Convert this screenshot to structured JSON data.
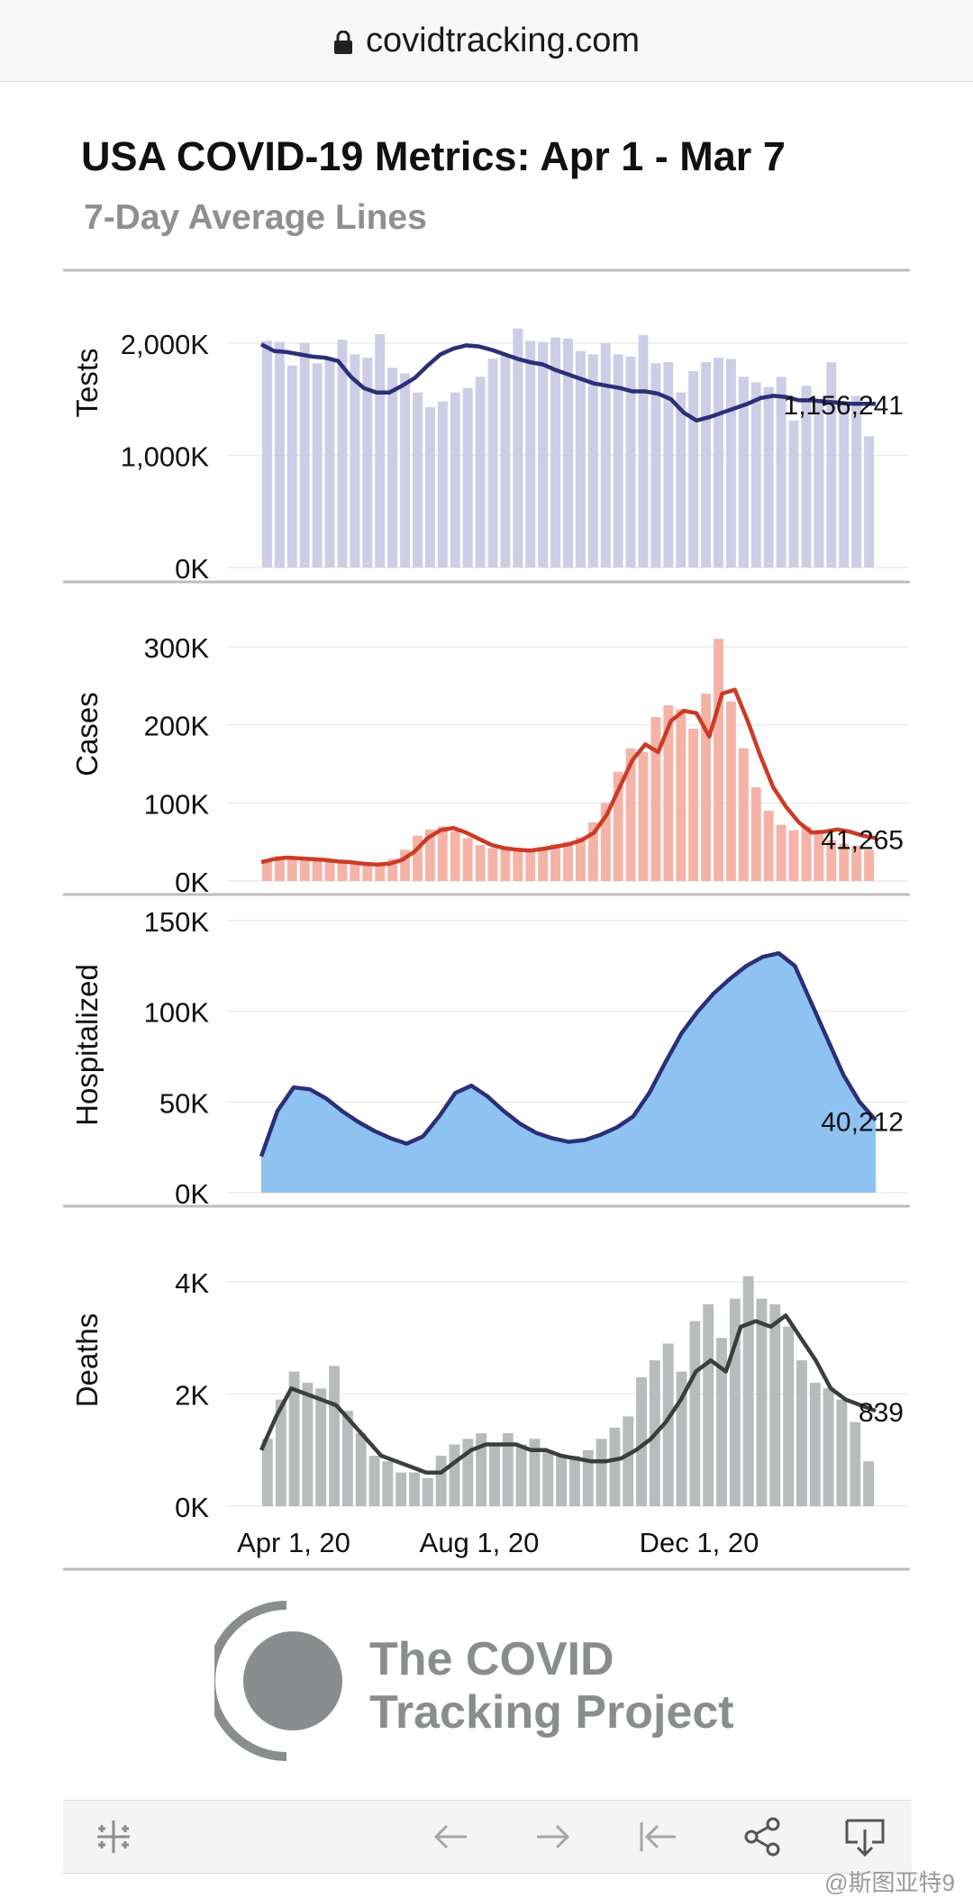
{
  "browser": {
    "url": "covidtracking.com"
  },
  "header": {
    "title": "USA COVID-19 Metrics: Apr 1 - Mar 7",
    "subtitle": "7-Day Average Lines"
  },
  "brand": {
    "line1": "The COVID",
    "line2": "Tracking Project"
  },
  "toolbar": {
    "icons": [
      "tableau-logo-icon",
      "undo-icon",
      "redo-icon",
      "revert-icon",
      "share-icon",
      "download-icon"
    ]
  },
  "watermark": "@斯图亚特9",
  "chart_data": [
    {
      "type": "bar",
      "name": "Tests",
      "ylabel": "Tests",
      "yticks": [
        0,
        1000,
        2000
      ],
      "ytick_labels": [
        "0K",
        "1,000K",
        "2,000K"
      ],
      "ylim": [
        0,
        2200
      ],
      "unit": "thousands",
      "bar_color": "#cdcde6",
      "line_color": "#2b2f78",
      "end_label": "1,156,241",
      "x_months": [
        "2020-04",
        "2020-05",
        "2020-06",
        "2020-07",
        "2020-08",
        "2020-09",
        "2020-10",
        "2020-11",
        "2020-12",
        "2021-01",
        "2021-02",
        "2021-03"
      ],
      "daily_values": [
        2020,
        2010,
        1800,
        2000,
        1820,
        1860,
        2030,
        1900,
        1870,
        2080,
        1780,
        1730,
        1560,
        1430,
        1480,
        1560,
        1600,
        1700,
        1860,
        1890,
        2130,
        2020,
        2010,
        2050,
        2040,
        1930,
        1900,
        2000,
        1900,
        1880,
        2070,
        1820,
        1830,
        1560,
        1750,
        1830,
        1870,
        1860,
        1700,
        1650,
        1610,
        1700,
        1310,
        1620,
        1500,
        1830,
        1460,
        1530,
        1170
      ],
      "avg_values": [
        1990,
        1930,
        1920,
        1900,
        1880,
        1870,
        1840,
        1700,
        1600,
        1560,
        1560,
        1620,
        1690,
        1800,
        1900,
        1950,
        1980,
        1970,
        1940,
        1900,
        1860,
        1830,
        1810,
        1760,
        1720,
        1680,
        1640,
        1620,
        1600,
        1570,
        1570,
        1550,
        1500,
        1380,
        1310,
        1340,
        1380,
        1420,
        1460,
        1510,
        1530,
        1520,
        1490,
        1490,
        1480,
        1470,
        1460,
        1460,
        1460
      ]
    },
    {
      "type": "bar",
      "name": "Cases",
      "ylabel": "Cases",
      "yticks": [
        0,
        100,
        200,
        300
      ],
      "ytick_labels": [
        "0K",
        "100K",
        "200K",
        "300K"
      ],
      "ylim": [
        0,
        300
      ],
      "unit": "thousands",
      "bar_color": "#f5b3a8",
      "line_color": "#cc3b25",
      "end_label": "41,265",
      "daily_values": [
        28,
        32,
        31,
        29,
        27,
        26,
        23,
        22,
        21,
        22,
        28,
        40,
        58,
        66,
        70,
        64,
        55,
        46,
        42,
        41,
        40,
        41,
        44,
        47,
        50,
        56,
        75,
        100,
        140,
        170,
        165,
        210,
        225,
        220,
        195,
        240,
        310,
        230,
        170,
        120,
        90,
        72,
        65,
        70,
        60,
        52,
        48,
        45,
        40
      ],
      "avg_values": [
        24,
        28,
        30,
        29,
        28,
        27,
        25,
        24,
        22,
        21,
        22,
        27,
        38,
        55,
        65,
        68,
        62,
        54,
        46,
        42,
        40,
        39,
        41,
        44,
        47,
        52,
        62,
        85,
        120,
        155,
        175,
        165,
        205,
        218,
        215,
        185,
        240,
        245,
        205,
        160,
        120,
        95,
        75,
        62,
        63,
        66,
        63,
        58,
        55
      ]
    },
    {
      "type": "area",
      "name": "Hospitalized",
      "ylabel": "Hospitalized",
      "yticks": [
        0,
        50,
        100,
        150
      ],
      "ytick_labels": [
        "0K",
        "50K",
        "100K",
        "150K"
      ],
      "ylim": [
        0,
        150
      ],
      "unit": "thousands",
      "fill_color": "#8ec2f0",
      "line_color": "#2b2f78",
      "end_label": "40,212",
      "avg_values": [
        20,
        45,
        58,
        57,
        52,
        45,
        39,
        34,
        30,
        27,
        31,
        42,
        55,
        59,
        53,
        45,
        38,
        33,
        30,
        28,
        29,
        32,
        36,
        42,
        55,
        72,
        88,
        100,
        110,
        118,
        125,
        130,
        132,
        125,
        105,
        85,
        65,
        50,
        40
      ]
    },
    {
      "type": "bar",
      "name": "Deaths",
      "ylabel": "Deaths",
      "yticks": [
        0,
        2,
        4
      ],
      "ytick_labels": [
        "0K",
        "2K",
        "4K"
      ],
      "ylim": [
        0,
        4
      ],
      "unit": "thousands",
      "bar_color": "#b7bbbb",
      "line_color": "#3c3e3e",
      "end_label": "839",
      "x_ticks": [
        "Apr 1, 20",
        "Aug 1, 20",
        "Dec 1, 20"
      ],
      "daily_values": [
        1.2,
        1.9,
        2.4,
        2.2,
        2.1,
        2.5,
        1.7,
        1.3,
        0.9,
        0.8,
        0.6,
        0.6,
        0.5,
        0.9,
        1.1,
        1.2,
        1.3,
        1.1,
        1.3,
        1.1,
        1.2,
        1.0,
        0.9,
        0.9,
        1.0,
        1.2,
        1.4,
        1.6,
        2.3,
        2.6,
        2.9,
        2.4,
        3.3,
        3.6,
        3.0,
        3.7,
        4.1,
        3.7,
        3.6,
        3.2,
        2.6,
        2.2,
        2.1,
        1.9,
        1.5,
        0.8
      ],
      "avg_values": [
        1.0,
        1.6,
        2.1,
        2.0,
        1.9,
        1.8,
        1.5,
        1.2,
        0.9,
        0.8,
        0.7,
        0.6,
        0.6,
        0.8,
        1.0,
        1.1,
        1.1,
        1.1,
        1.0,
        1.0,
        0.9,
        0.85,
        0.8,
        0.8,
        0.85,
        1.0,
        1.2,
        1.5,
        1.9,
        2.4,
        2.6,
        2.4,
        3.2,
        3.3,
        3.2,
        3.4,
        3.0,
        2.6,
        2.1,
        1.9,
        1.8,
        1.7
      ]
    }
  ]
}
